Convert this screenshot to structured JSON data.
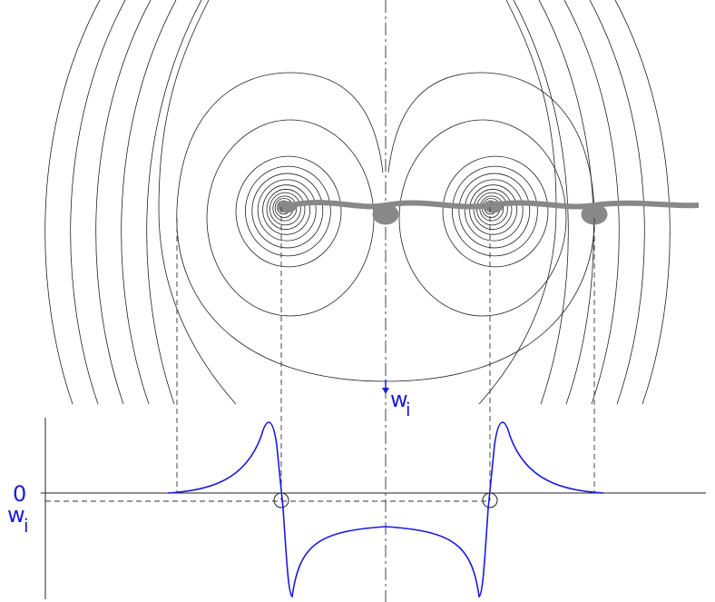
{
  "labels": {
    "arrow": {
      "main": "w",
      "sub": "i"
    },
    "zero": "0",
    "level": {
      "main": "w",
      "sub": "i"
    }
  }
}
